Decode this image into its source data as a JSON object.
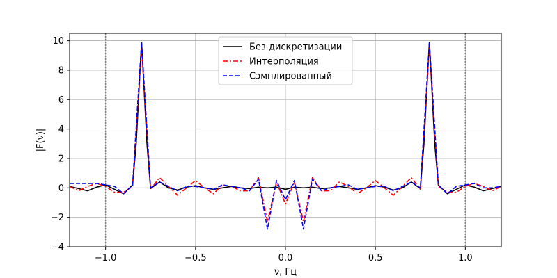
{
  "chart_data": {
    "type": "line",
    "title": "",
    "xlabel": "ν, Гц",
    "ylabel": "|F(ν)|",
    "xlim": [
      -1.2,
      1.2
    ],
    "ylim": [
      -4,
      10.5
    ],
    "xticks": [
      -1.0,
      -0.5,
      0.0,
      0.5,
      1.0
    ],
    "xtick_labels": [
      "−1.0",
      "−0.5",
      "0.0",
      "0.5",
      "1.0"
    ],
    "yticks": [
      -4,
      -2,
      0,
      2,
      4,
      6,
      8,
      10
    ],
    "ytick_labels": [
      "−4",
      "−2",
      "0",
      "2",
      "4",
      "6",
      "8",
      "10"
    ],
    "grid": true,
    "legend_position": "top-center",
    "vlines": [
      -1.0,
      1.0
    ],
    "vline_color": "#7f7f7f",
    "series": [
      {
        "name": "Без дискретизации",
        "color": "#000000",
        "style": "solid",
        "x": [
          -1.2,
          -1.15,
          -1.1,
          -1.05,
          -1.0,
          -0.95,
          -0.9,
          -0.85,
          -0.83,
          -0.8,
          -0.77,
          -0.75,
          -0.7,
          -0.65,
          -0.6,
          -0.55,
          -0.5,
          -0.45,
          -0.4,
          -0.35,
          -0.3,
          -0.25,
          -0.2,
          -0.15,
          -0.1,
          -0.05,
          0.0,
          0.05,
          0.1,
          0.15,
          0.2,
          0.25,
          0.3,
          0.35,
          0.4,
          0.45,
          0.5,
          0.55,
          0.6,
          0.65,
          0.7,
          0.75,
          0.77,
          0.8,
          0.83,
          0.85,
          0.9,
          0.95,
          1.0,
          1.05,
          1.1,
          1.15,
          1.2
        ],
        "y": [
          0.1,
          -0.05,
          -0.2,
          0.05,
          0.2,
          -0.1,
          -0.4,
          0.2,
          3.0,
          9.9,
          3.0,
          -0.05,
          0.4,
          0.0,
          -0.15,
          0.05,
          0.15,
          0.0,
          -0.1,
          0.0,
          0.1,
          0.0,
          -0.05,
          0.05,
          0.0,
          0.05,
          -0.1,
          0.05,
          0.0,
          0.05,
          -0.05,
          0.0,
          0.1,
          0.0,
          -0.1,
          0.0,
          0.15,
          0.05,
          -0.15,
          0.0,
          0.4,
          -0.05,
          3.0,
          9.9,
          3.0,
          0.2,
          -0.4,
          -0.1,
          0.2,
          0.05,
          -0.2,
          -0.05,
          0.1
        ]
      },
      {
        "name": "Интерполяция",
        "color": "#ff0000",
        "style": "dashdot",
        "x": [
          -1.2,
          -1.15,
          -1.1,
          -1.05,
          -1.0,
          -0.95,
          -0.9,
          -0.85,
          -0.8,
          -0.75,
          -0.7,
          -0.65,
          -0.6,
          -0.55,
          -0.5,
          -0.45,
          -0.4,
          -0.35,
          -0.3,
          -0.25,
          -0.2,
          -0.15,
          -0.1,
          -0.05,
          0.0,
          0.05,
          0.1,
          0.15,
          0.2,
          0.25,
          0.3,
          0.35,
          0.4,
          0.45,
          0.5,
          0.55,
          0.6,
          0.65,
          0.7,
          0.75,
          0.8,
          0.85,
          0.9,
          0.95,
          1.0,
          1.05,
          1.1,
          1.15,
          1.2
        ],
        "y": [
          0.1,
          -0.2,
          0.1,
          0.3,
          0.1,
          -0.3,
          -0.3,
          0.1,
          9.5,
          -0.1,
          0.7,
          0.1,
          -0.5,
          0.0,
          0.5,
          0.0,
          -0.4,
          0.2,
          0.1,
          -0.2,
          -0.2,
          0.7,
          -2.3,
          0.4,
          -1.1,
          0.4,
          -2.3,
          0.7,
          -0.2,
          -0.2,
          0.4,
          0.1,
          -0.4,
          0.0,
          0.5,
          0.0,
          -0.5,
          0.1,
          0.7,
          -0.1,
          9.5,
          0.1,
          -0.3,
          -0.3,
          0.1,
          0.3,
          0.1,
          -0.2,
          0.1
        ]
      },
      {
        "name": "Сэмплированный",
        "color": "#0000ff",
        "style": "dashed",
        "x": [
          -1.2,
          -1.15,
          -1.1,
          -1.05,
          -1.0,
          -0.95,
          -0.9,
          -0.85,
          -0.8,
          -0.75,
          -0.7,
          -0.65,
          -0.6,
          -0.55,
          -0.5,
          -0.45,
          -0.4,
          -0.35,
          -0.3,
          -0.25,
          -0.2,
          -0.15,
          -0.1,
          -0.05,
          0.0,
          0.05,
          0.1,
          0.15,
          0.2,
          0.25,
          0.3,
          0.35,
          0.4,
          0.45,
          0.5,
          0.55,
          0.6,
          0.65,
          0.7,
          0.75,
          0.8,
          0.85,
          0.9,
          0.95,
          1.0,
          1.05,
          1.1,
          1.15,
          1.2
        ],
        "y": [
          0.3,
          0.3,
          0.3,
          0.3,
          0.2,
          0.1,
          -0.4,
          0.2,
          9.9,
          0.0,
          0.4,
          0.1,
          -0.2,
          0.1,
          0.1,
          0.0,
          -0.1,
          0.2,
          0.1,
          0.0,
          -0.2,
          0.6,
          -2.8,
          0.5,
          -0.8,
          0.5,
          -2.8,
          0.6,
          -0.2,
          0.0,
          0.1,
          0.2,
          -0.1,
          0.0,
          0.1,
          0.1,
          -0.2,
          0.1,
          0.4,
          0.0,
          9.9,
          0.2,
          -0.4,
          0.1,
          0.2,
          0.3,
          0.0,
          0.0,
          0.1
        ]
      }
    ]
  }
}
